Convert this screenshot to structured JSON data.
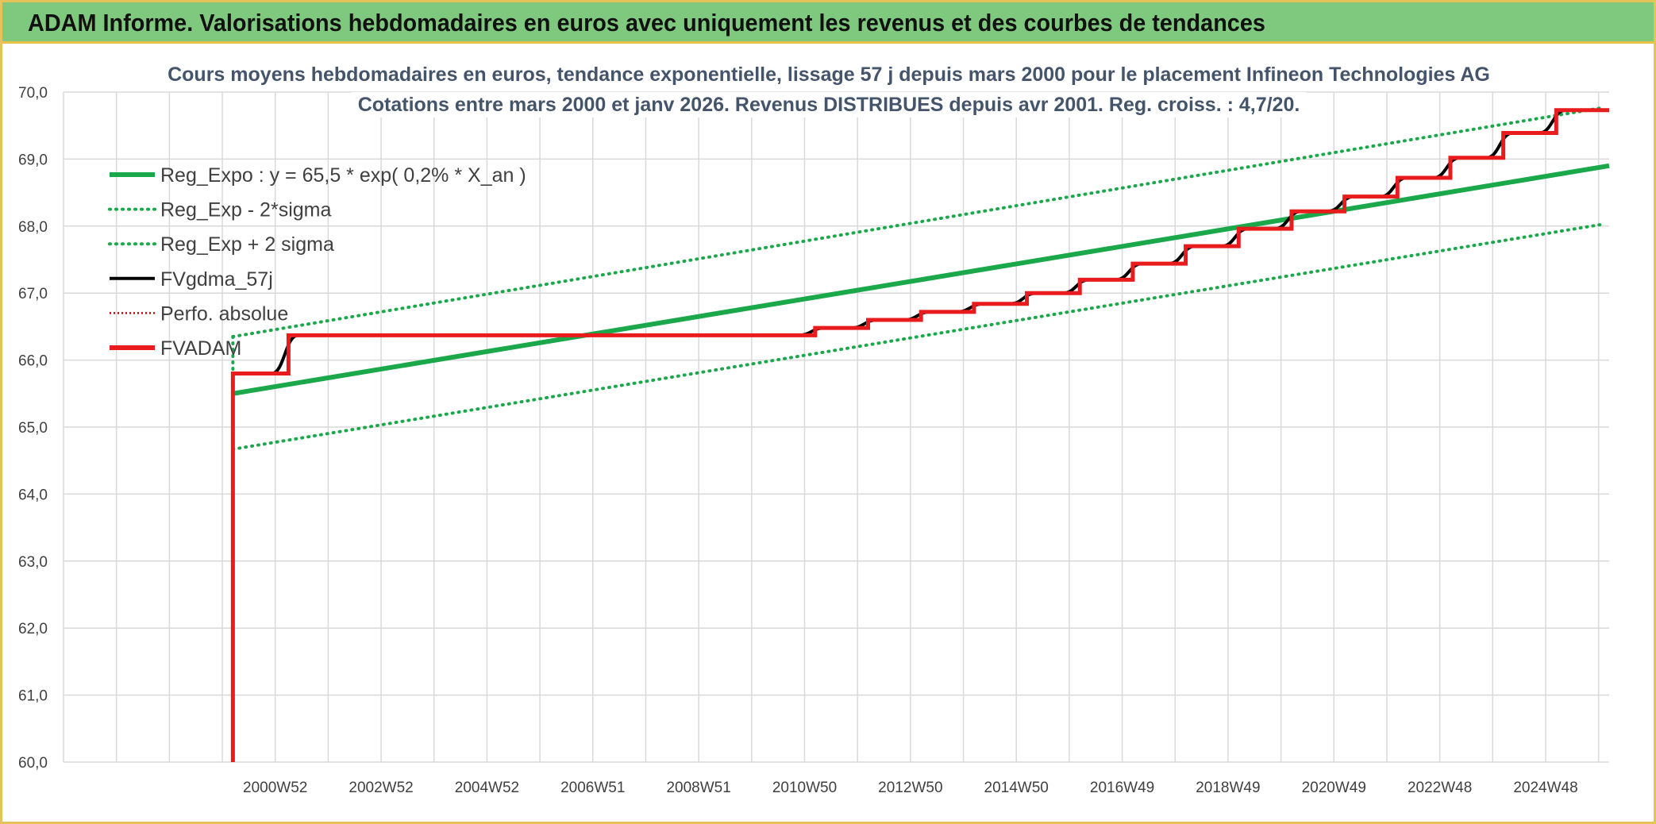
{
  "banner": {
    "title": "ADAM Informe. Valorisations hebdomadaires en euros avec uniquement les revenus et des courbes de tendances"
  },
  "colors": {
    "banner_bg": "#7fc97f",
    "frame": "#e6c35a",
    "reg_green": "#1aa84a",
    "fvadam_red": "#e81c1c",
    "fvgdma_black": "#000000",
    "perfo_red": "#c00000",
    "grid": "#d9d9d9"
  },
  "chart_data": {
    "type": "line",
    "title_lines": [
      "Cours moyens hebdomadaires en euros, tendance exponentielle, lissage 57 j depuis mars 2000 pour le placement Infineon Technologies AG",
      "Cotations entre mars 2000 et janv 2026. Revenus DISTRIBUES depuis avr 2001. Reg. croiss. : 4,7/20."
    ],
    "ylim": [
      60,
      70
    ],
    "y_ticks": [
      "60,0",
      "61,0",
      "62,0",
      "63,0",
      "64,0",
      "65,0",
      "66,0",
      "67,0",
      "68,0",
      "69,0",
      "70,0"
    ],
    "xlim": [
      1997.0,
      2026.2
    ],
    "x_ticks": [
      {
        "label": "2000W52",
        "x": 2001.0
      },
      {
        "label": "2002W52",
        "x": 2003.0
      },
      {
        "label": "2004W52",
        "x": 2005.0
      },
      {
        "label": "2006W51",
        "x": 2007.0
      },
      {
        "label": "2008W51",
        "x": 2009.0
      },
      {
        "label": "2010W50",
        "x": 2011.0
      },
      {
        "label": "2012W50",
        "x": 2013.0
      },
      {
        "label": "2014W50",
        "x": 2015.0
      },
      {
        "label": "2016W49",
        "x": 2017.0
      },
      {
        "label": "2018W49",
        "x": 2019.0
      },
      {
        "label": "2020W49",
        "x": 2021.0
      },
      {
        "label": "2022W48",
        "x": 2023.0
      },
      {
        "label": "2024W48",
        "x": 2025.0
      }
    ],
    "grid": true,
    "legend_position": "top-left",
    "series": [
      {
        "name": "Reg_Expo : y = 65,5 * exp( 0,2% *  X_an )",
        "key": "reg",
        "style": "solid-thick",
        "color": "#1aa84a",
        "points": [
          [
            2000.2,
            65.5
          ],
          [
            2026.2,
            68.9
          ]
        ]
      },
      {
        "name": "Reg_Exp - 2*sigma",
        "key": "reg_minus",
        "style": "dotted",
        "color": "#1aa84a",
        "points": [
          [
            2000.2,
            64.67
          ],
          [
            2026.1,
            68.03
          ]
        ]
      },
      {
        "name": "Reg_Exp + 2 sigma",
        "key": "reg_plus",
        "style": "dotted",
        "color": "#1aa84a",
        "points": [
          [
            2000.2,
            66.35
          ],
          [
            2026.1,
            69.77
          ]
        ]
      },
      {
        "name": "FVgdma_57j",
        "key": "fvgdma",
        "style": "solid",
        "color": "#000000"
      },
      {
        "name": "Perfo. absolue",
        "key": "perfo",
        "style": "dotted",
        "color": "#c00000"
      },
      {
        "name": "FVADAM",
        "key": "fvadam",
        "style": "solid-thick",
        "color": "#e81c1c",
        "start": [
          2000.2,
          60.0
        ],
        "steps": [
          [
            2000.2,
            65.8
          ],
          [
            2001.25,
            66.37
          ],
          [
            2010.15,
            66.37
          ],
          [
            2011.2,
            66.48
          ],
          [
            2012.2,
            66.6
          ],
          [
            2013.2,
            66.72
          ],
          [
            2014.2,
            66.84
          ],
          [
            2015.2,
            67.0
          ],
          [
            2016.2,
            67.2
          ],
          [
            2017.2,
            67.44
          ],
          [
            2018.2,
            67.7
          ],
          [
            2019.2,
            67.96
          ],
          [
            2020.2,
            68.22
          ],
          [
            2021.2,
            68.44
          ],
          [
            2022.2,
            68.72
          ],
          [
            2023.2,
            69.02
          ],
          [
            2024.2,
            69.39
          ],
          [
            2025.2,
            69.73
          ],
          [
            2026.2,
            69.73
          ]
        ]
      }
    ]
  }
}
